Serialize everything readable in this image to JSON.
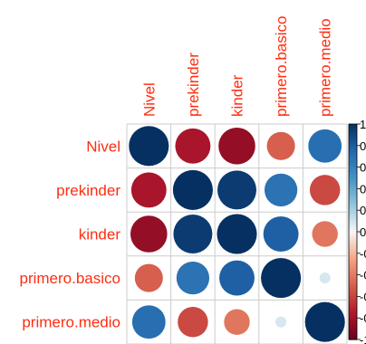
{
  "chart_data": {
    "type": "heatmap",
    "style": "correlation-circles",
    "variables": [
      "Nivel",
      "prekinder",
      "kinder",
      "primero.basico",
      "primero.medio"
    ],
    "matrix": [
      [
        1.0,
        -0.78,
        -0.85,
        -0.5,
        0.7
      ],
      [
        -0.78,
        1.0,
        0.95,
        0.68,
        -0.58
      ],
      [
        -0.85,
        0.95,
        1.0,
        0.78,
        -0.42
      ],
      [
        -0.5,
        0.68,
        0.78,
        1.0,
        0.08
      ],
      [
        0.7,
        -0.58,
        -0.42,
        0.08,
        1.0
      ]
    ],
    "color_scale": {
      "range": [
        -1,
        1
      ],
      "tick_labels": [
        "1",
        "0.",
        "0.",
        "0.",
        "0.",
        "0",
        "-0.",
        "-0.",
        "-0.",
        "-0.",
        "-1"
      ],
      "colors": {
        "neg1": "#67001f",
        "neg": "#b2182b",
        "neg_mid": "#d6604d",
        "neg_light": "#f4a582",
        "zero": "#f7f7f7",
        "pos_light": "#92c5de",
        "pos_mid": "#4393c3",
        "pos": "#2166ac",
        "pos1": "#053061"
      }
    },
    "label_color": "#ff2d10",
    "grid_color": "#cccccc"
  }
}
